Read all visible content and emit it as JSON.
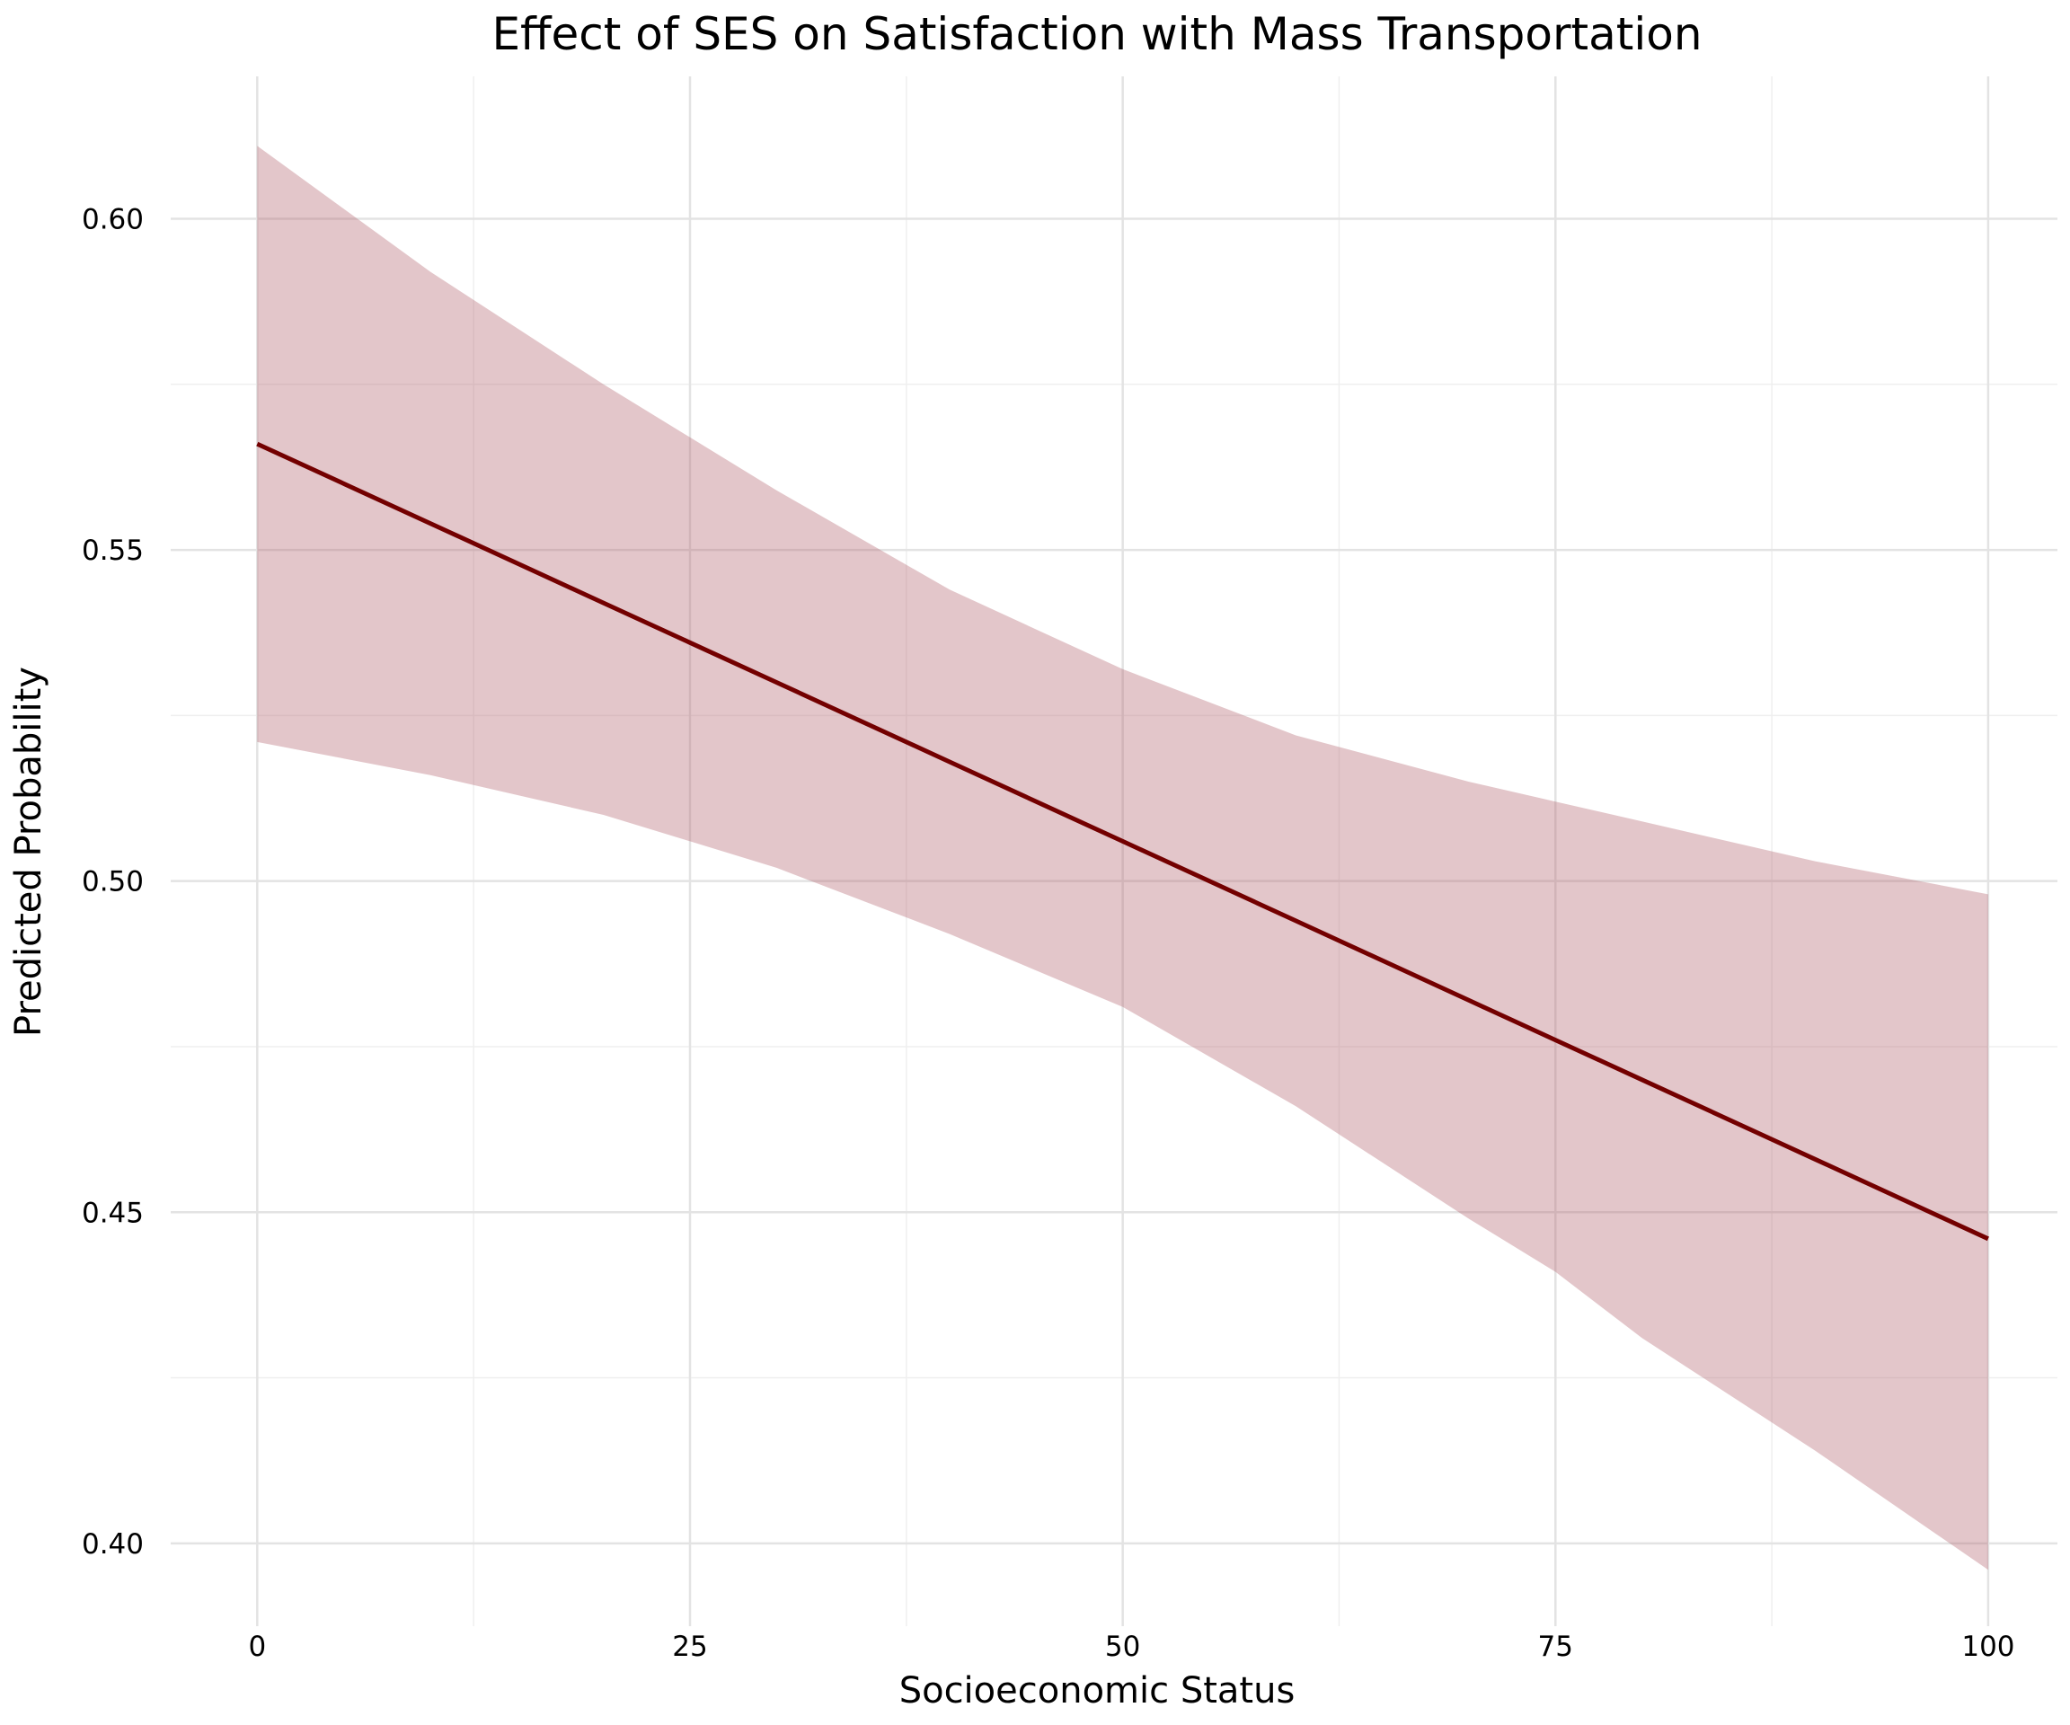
{
  "chart_data": {
    "type": "line",
    "title": "Effect of SES on Satisfaction with Mass Transportation",
    "xlabel": "Socioeconomic Status",
    "ylabel": "Predicted Probability",
    "xlim": [
      -5,
      104
    ],
    "ylim": [
      0.3875,
      0.6215
    ],
    "x_ticks": [
      0,
      25,
      50,
      75,
      100
    ],
    "x_tick_labels": [
      "0",
      "25",
      "50",
      "75",
      "100"
    ],
    "y_ticks": [
      0.4,
      0.45,
      0.5,
      0.55,
      0.6
    ],
    "y_tick_labels": [
      "0.40",
      "0.45",
      "0.50",
      "0.55",
      "0.60"
    ],
    "x_minor_ticks": [
      12.5,
      37.5,
      62.5,
      87.5
    ],
    "y_minor_ticks": [
      0.425,
      0.475,
      0.525,
      0.575
    ],
    "grid": true,
    "legend": "none",
    "colors": {
      "line": "#730000",
      "ribbon": "#b56a73"
    },
    "series": [
      {
        "x": [
          0,
          10,
          20,
          25,
          30,
          40,
          50,
          60,
          70,
          75,
          80,
          90,
          100
        ],
        "y": [
          0.566,
          0.554,
          0.542,
          0.536,
          0.53,
          0.518,
          0.506,
          0.494,
          0.482,
          0.476,
          0.47,
          0.458,
          0.446
        ],
        "lower": [
          0.521,
          0.516,
          0.51,
          0.506,
          0.502,
          0.492,
          0.481,
          0.466,
          0.449,
          0.441,
          0.431,
          0.414,
          0.396
        ],
        "upper": [
          0.611,
          0.592,
          0.575,
          0.567,
          0.559,
          0.544,
          0.532,
          0.522,
          0.515,
          0.512,
          0.509,
          0.503,
          0.498
        ]
      }
    ]
  }
}
